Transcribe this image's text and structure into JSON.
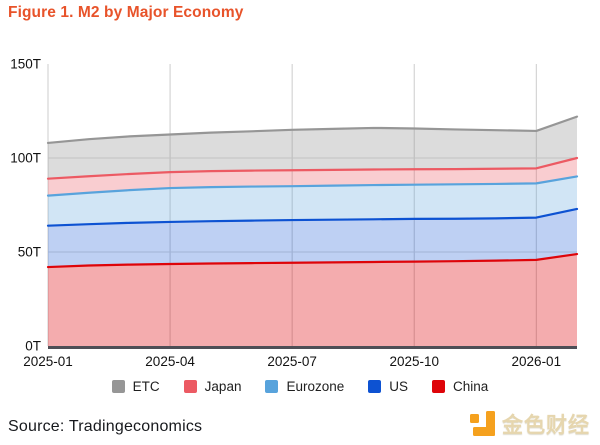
{
  "header": {
    "title": "Figure 1. M2 by Major Economy",
    "title_color": "#e8532a"
  },
  "chart_data": {
    "type": "area",
    "stacked": true,
    "title": "Figure 1. M2 by Major Economy",
    "x": [
      "2025-01",
      "2025-02",
      "2025-03",
      "2025-04",
      "2025-05",
      "2025-06",
      "2025-07",
      "2025-08",
      "2025-09",
      "2025-10",
      "2025-11",
      "2025-12",
      "2026-01",
      "2026-02"
    ],
    "x_tick_indices": [
      0,
      3,
      6,
      9,
      12
    ],
    "x_tick_labels": [
      "2025-01",
      "2025-04",
      "2025-07",
      "2025-10",
      "2026-01"
    ],
    "ylim": [
      0,
      150
    ],
    "y_ticks": [
      {
        "value": 0,
        "label": "0T"
      },
      {
        "value": 50,
        "label": "50T"
      },
      {
        "value": 100,
        "label": "100T"
      },
      {
        "value": 150,
        "label": "150T"
      }
    ],
    "grid": true,
    "series": [
      {
        "name": "China",
        "color": "#de0409",
        "fill": "rgba(222,4,9,0.33)",
        "values": [
          42.0,
          42.8,
          43.3,
          43.6,
          43.9,
          44.1,
          44.3,
          44.5,
          44.7,
          44.9,
          45.1,
          45.4,
          45.8,
          48.9
        ]
      },
      {
        "name": "US",
        "color": "#0d52d2",
        "fill": "rgba(13,82,210,0.27)",
        "values": [
          22.0,
          22.0,
          22.2,
          22.4,
          22.5,
          22.6,
          22.7,
          22.7,
          22.7,
          22.7,
          22.6,
          22.5,
          22.5,
          24.0
        ]
      },
      {
        "name": "Eurozone",
        "color": "#58a3dc",
        "fill": "rgba(88,163,220,0.28)",
        "values": [
          16.0,
          16.7,
          17.4,
          18.0,
          18.1,
          18.1,
          18.0,
          18.1,
          18.2,
          18.2,
          18.3,
          18.3,
          18.2,
          17.3
        ]
      },
      {
        "name": "Japan",
        "color": "#ec5a63",
        "fill": "rgba(236,90,99,0.30)",
        "values": [
          9.0,
          8.8,
          8.6,
          8.5,
          8.5,
          8.5,
          8.5,
          8.4,
          8.3,
          8.2,
          8.1,
          8.1,
          8.0,
          9.8
        ]
      },
      {
        "name": "ETC",
        "color": "#969696",
        "fill": "rgba(150,150,150,0.33)",
        "values": [
          19.0,
          19.7,
          20.0,
          20.0,
          20.5,
          20.9,
          21.5,
          21.8,
          22.1,
          21.7,
          21.1,
          20.5,
          19.9,
          22.0
        ]
      }
    ],
    "legend": {
      "position": "bottom",
      "order": [
        "ETC",
        "Japan",
        "Eurozone",
        "US",
        "China"
      ]
    }
  },
  "footer": {
    "source": "Source: Tradingeconomics",
    "logo_text": "金色财经",
    "logo_color": "#f5a11e"
  }
}
